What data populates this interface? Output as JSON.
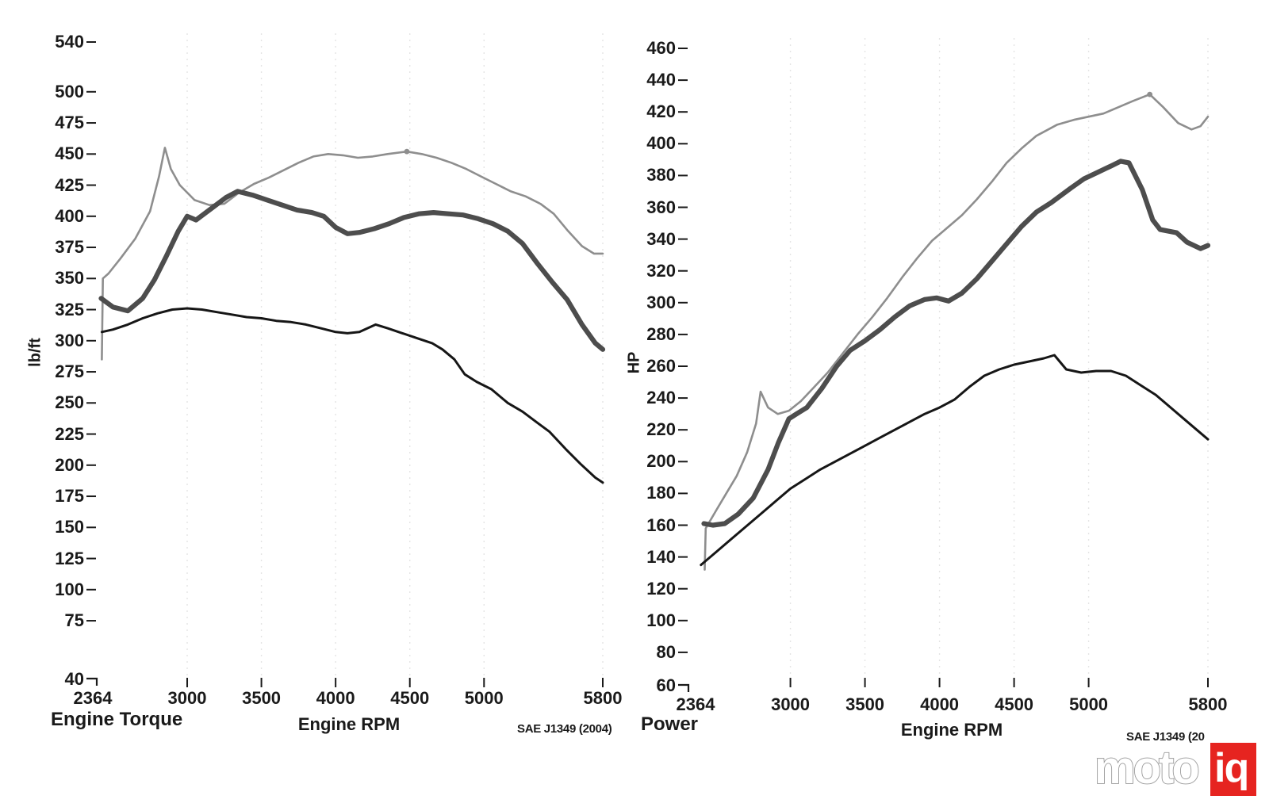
{
  "chart_data": [
    {
      "type": "line",
      "title": "Engine Torque",
      "xlabel": "Engine RPM",
      "ylabel": "lb/ft",
      "note": "SAE J1349 (2004)",
      "xlim": [
        2364,
        5800
      ],
      "ylim": [
        40,
        560
      ],
      "x_ticks": [
        2364,
        3000,
        3500,
        4000,
        4500,
        5000,
        5800
      ],
      "y_ticks": [
        540,
        500,
        475,
        450,
        425,
        400,
        375,
        350,
        325,
        300,
        275,
        250,
        225,
        200,
        175,
        150,
        125,
        100,
        75,
        40
      ],
      "grid": "faint dashed vertical lines at rpm ticks",
      "legend": "none shown",
      "series": [
        {
          "name": "light-gray-run",
          "color": "#8e8e8e",
          "width": 2.6,
          "marker": [
            4480,
            452
          ],
          "points": [
            [
              2425,
              285
            ],
            [
              2432,
              350
            ],
            [
              2470,
              354
            ],
            [
              2550,
              366
            ],
            [
              2650,
              382
            ],
            [
              2750,
              404
            ],
            [
              2810,
              432
            ],
            [
              2850,
              455
            ],
            [
              2890,
              438
            ],
            [
              2950,
              425
            ],
            [
              3050,
              413
            ],
            [
              3150,
              409
            ],
            [
              3250,
              410
            ],
            [
              3350,
              419
            ],
            [
              3450,
              426
            ],
            [
              3550,
              431
            ],
            [
              3650,
              437
            ],
            [
              3750,
              443
            ],
            [
              3850,
              448
            ],
            [
              3950,
              450
            ],
            [
              4050,
              449
            ],
            [
              4150,
              447
            ],
            [
              4250,
              448
            ],
            [
              4350,
              450
            ],
            [
              4480,
              452
            ],
            [
              4580,
              450
            ],
            [
              4680,
              447
            ],
            [
              4780,
              443
            ],
            [
              4880,
              438
            ],
            [
              4980,
              432
            ],
            [
              5080,
              426
            ],
            [
              5180,
              420
            ],
            [
              5280,
              416
            ],
            [
              5380,
              410
            ],
            [
              5470,
              402
            ],
            [
              5560,
              389
            ],
            [
              5660,
              376
            ],
            [
              5740,
              370
            ],
            [
              5800,
              370
            ]
          ]
        },
        {
          "name": "dark-gray-thick-run",
          "color": "#4d4d4d",
          "width": 6.2,
          "points": [
            [
              2420,
              334
            ],
            [
              2500,
              327
            ],
            [
              2600,
              324
            ],
            [
              2700,
              334
            ],
            [
              2780,
              349
            ],
            [
              2860,
              368
            ],
            [
              2940,
              388
            ],
            [
              3000,
              400
            ],
            [
              3060,
              397
            ],
            [
              3160,
              406
            ],
            [
              3260,
              415
            ],
            [
              3340,
              420
            ],
            [
              3440,
              417
            ],
            [
              3540,
              413
            ],
            [
              3640,
              409
            ],
            [
              3740,
              405
            ],
            [
              3840,
              403
            ],
            [
              3920,
              400
            ],
            [
              4000,
              391
            ],
            [
              4080,
              386
            ],
            [
              4160,
              387
            ],
            [
              4260,
              390
            ],
            [
              4360,
              394
            ],
            [
              4460,
              399
            ],
            [
              4560,
              402
            ],
            [
              4660,
              403
            ],
            [
              4760,
              402
            ],
            [
              4860,
              401
            ],
            [
              4960,
              398
            ],
            [
              5060,
              394
            ],
            [
              5160,
              388
            ],
            [
              5260,
              378
            ],
            [
              5360,
              362
            ],
            [
              5460,
              347
            ],
            [
              5560,
              333
            ],
            [
              5660,
              313
            ],
            [
              5750,
              298
            ],
            [
              5800,
              293
            ]
          ]
        },
        {
          "name": "black-run",
          "color": "#161616",
          "width": 3,
          "points": [
            [
              2425,
              307
            ],
            [
              2500,
              309
            ],
            [
              2600,
              313
            ],
            [
              2700,
              318
            ],
            [
              2800,
              322
            ],
            [
              2900,
              325
            ],
            [
              3000,
              326
            ],
            [
              3100,
              325
            ],
            [
              3200,
              323
            ],
            [
              3300,
              321
            ],
            [
              3400,
              319
            ],
            [
              3500,
              318
            ],
            [
              3600,
              316
            ],
            [
              3700,
              315
            ],
            [
              3800,
              313
            ],
            [
              3900,
              310
            ],
            [
              4000,
              307
            ],
            [
              4080,
              306
            ],
            [
              4160,
              307
            ],
            [
              4270,
              313
            ],
            [
              4350,
              310
            ],
            [
              4450,
              306
            ],
            [
              4550,
              302
            ],
            [
              4650,
              298
            ],
            [
              4720,
              293
            ],
            [
              4800,
              285
            ],
            [
              4870,
              273
            ],
            [
              4950,
              267
            ],
            [
              5050,
              261
            ],
            [
              5160,
              250
            ],
            [
              5260,
              243
            ],
            [
              5360,
              234
            ],
            [
              5440,
              227
            ],
            [
              5550,
              213
            ],
            [
              5650,
              201
            ],
            [
              5750,
              190
            ],
            [
              5800,
              186
            ]
          ]
        }
      ]
    },
    {
      "type": "line",
      "title": "Power",
      "xlabel": "Engine RPM",
      "ylabel": "HP",
      "note": "SAE J1349 (20",
      "xlim": [
        2364,
        5800
      ],
      "ylim": [
        60,
        470
      ],
      "x_ticks": [
        2364,
        3000,
        3500,
        4000,
        4500,
        5000,
        5800
      ],
      "y_ticks": [
        460,
        440,
        420,
        400,
        380,
        360,
        340,
        320,
        300,
        280,
        260,
        240,
        220,
        200,
        180,
        160,
        140,
        120,
        100,
        80,
        60
      ],
      "grid": "faint dashed vertical lines at rpm ticks",
      "legend": "none shown",
      "series": [
        {
          "name": "light-gray-run",
          "color": "#8e8e8e",
          "width": 2.6,
          "marker": [
            5410,
            431
          ],
          "points": [
            [
              2425,
              132
            ],
            [
              2432,
              158
            ],
            [
              2500,
              169
            ],
            [
              2570,
              180
            ],
            [
              2640,
              191
            ],
            [
              2710,
              206
            ],
            [
              2770,
              224
            ],
            [
              2800,
              244
            ],
            [
              2850,
              234
            ],
            [
              2915,
              230
            ],
            [
              2990,
              232
            ],
            [
              3070,
              238
            ],
            [
              3150,
              246
            ],
            [
              3250,
              256
            ],
            [
              3350,
              268
            ],
            [
              3450,
              280
            ],
            [
              3550,
              291
            ],
            [
              3650,
              303
            ],
            [
              3750,
              316
            ],
            [
              3850,
              328
            ],
            [
              3950,
              339
            ],
            [
              4050,
              347
            ],
            [
              4150,
              355
            ],
            [
              4250,
              365
            ],
            [
              4350,
              376
            ],
            [
              4450,
              388
            ],
            [
              4550,
              397
            ],
            [
              4650,
              405
            ],
            [
              4790,
              412
            ],
            [
              4900,
              415
            ],
            [
              5000,
              417
            ],
            [
              5100,
              419
            ],
            [
              5200,
              423
            ],
            [
              5300,
              427
            ],
            [
              5410,
              431
            ],
            [
              5500,
              423
            ],
            [
              5600,
              413
            ],
            [
              5690,
              409
            ],
            [
              5750,
              411
            ],
            [
              5800,
              417
            ]
          ]
        },
        {
          "name": "dark-gray-thick-run",
          "color": "#4d4d4d",
          "width": 6.2,
          "points": [
            [
              2420,
              161
            ],
            [
              2480,
              160
            ],
            [
              2560,
              161
            ],
            [
              2650,
              167
            ],
            [
              2750,
              177
            ],
            [
              2850,
              195
            ],
            [
              2920,
              212
            ],
            [
              2990,
              227
            ],
            [
              3040,
              230
            ],
            [
              3110,
              234
            ],
            [
              3210,
              246
            ],
            [
              3310,
              260
            ],
            [
              3400,
              270
            ],
            [
              3500,
              276
            ],
            [
              3600,
              283
            ],
            [
              3700,
              291
            ],
            [
              3800,
              298
            ],
            [
              3900,
              302
            ],
            [
              3980,
              303
            ],
            [
              4060,
              301
            ],
            [
              4150,
              306
            ],
            [
              4250,
              315
            ],
            [
              4350,
              326
            ],
            [
              4450,
              337
            ],
            [
              4550,
              348
            ],
            [
              4650,
              357
            ],
            [
              4750,
              363
            ],
            [
              4880,
              372
            ],
            [
              4970,
              378
            ],
            [
              5060,
              382
            ],
            [
              5150,
              386
            ],
            [
              5215,
              389
            ],
            [
              5270,
              388
            ],
            [
              5360,
              371
            ],
            [
              5430,
              352
            ],
            [
              5480,
              346
            ],
            [
              5590,
              344
            ],
            [
              5660,
              338
            ],
            [
              5750,
              334
            ],
            [
              5800,
              336
            ]
          ]
        },
        {
          "name": "black-run",
          "color": "#161616",
          "width": 3,
          "points": [
            [
              2400,
              135
            ],
            [
              2500,
              143
            ],
            [
              2600,
              151
            ],
            [
              2700,
              159
            ],
            [
              2800,
              167
            ],
            [
              2900,
              175
            ],
            [
              3000,
              183
            ],
            [
              3100,
              189
            ],
            [
              3200,
              195
            ],
            [
              3300,
              200
            ],
            [
              3400,
              205
            ],
            [
              3500,
              210
            ],
            [
              3600,
              215
            ],
            [
              3700,
              220
            ],
            [
              3800,
              225
            ],
            [
              3900,
              230
            ],
            [
              4000,
              234
            ],
            [
              4100,
              239
            ],
            [
              4200,
              247
            ],
            [
              4300,
              254
            ],
            [
              4400,
              258
            ],
            [
              4500,
              261
            ],
            [
              4600,
              263
            ],
            [
              4700,
              265
            ],
            [
              4770,
              267
            ],
            [
              4850,
              258
            ],
            [
              4950,
              256
            ],
            [
              5050,
              257
            ],
            [
              5150,
              257
            ],
            [
              5250,
              254
            ],
            [
              5350,
              248
            ],
            [
              5450,
              242
            ],
            [
              5550,
              234
            ],
            [
              5650,
              226
            ],
            [
              5750,
              218
            ],
            [
              5800,
              214
            ]
          ]
        }
      ]
    }
  ],
  "logo": {
    "moto": "moto",
    "iq": "iq",
    "red": "#e62420",
    "outline_gray": "#9a9a9a"
  }
}
